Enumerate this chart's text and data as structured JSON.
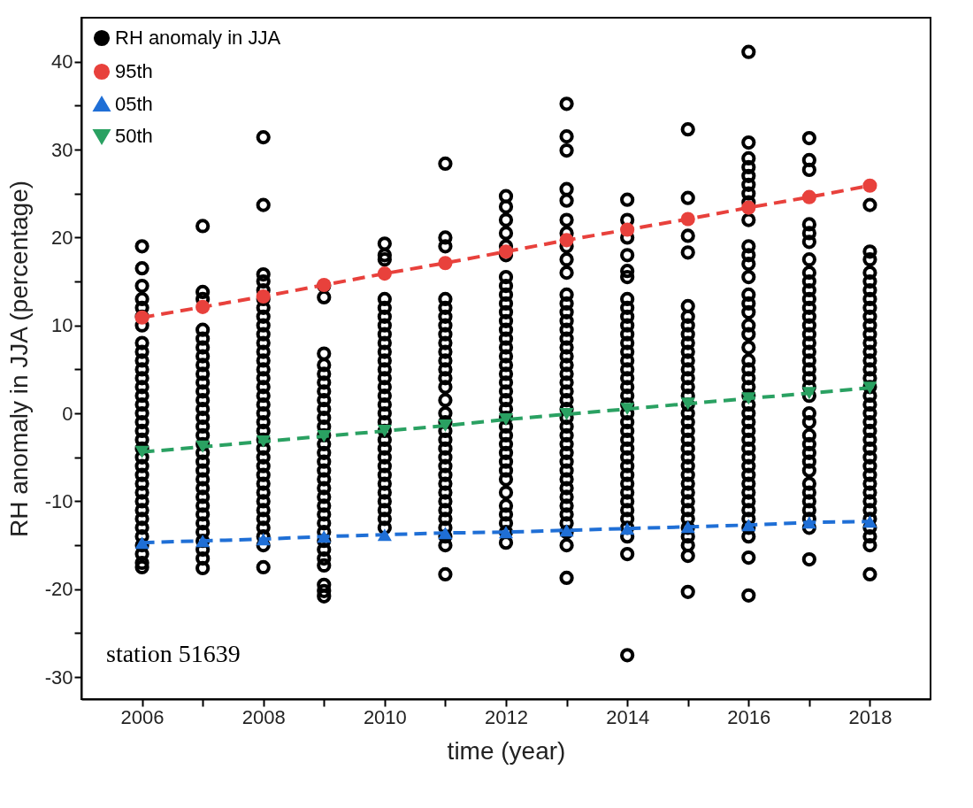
{
  "chart_data": {
    "type": "scatter",
    "xlabel": "time (year)",
    "ylabel": "RH anomaly in JJA (percentage)",
    "xlim": [
      2005,
      2019
    ],
    "ylim": [
      -32.5,
      45
    ],
    "xticks": [
      2006,
      {
        "value": 2007,
        "label": null
      },
      2008,
      {
        "value": 2009,
        "label": null
      },
      2010,
      {
        "value": 2011,
        "label": null
      },
      2012,
      {
        "value": 2013,
        "label": null
      },
      2014,
      {
        "value": 2015,
        "label": null
      },
      2016,
      {
        "value": 2017,
        "label": null
      },
      2018
    ],
    "yticks": [
      -30,
      {
        "value": -25,
        "label": null
      },
      -20,
      {
        "value": -15,
        "label": null
      },
      -10,
      {
        "value": -5,
        "label": null
      },
      0,
      {
        "value": 5,
        "label": null
      },
      10,
      {
        "value": 15,
        "label": null
      },
      20,
      {
        "value": 25,
        "label": null
      },
      30,
      {
        "value": 35,
        "label": null
      },
      40
    ],
    "grid": false,
    "legend": "top left",
    "annotations": [
      "station 51639"
    ],
    "series": [
      {
        "name": "RH anomaly in JJA",
        "marker": "circle",
        "color": "#000000",
        "x": [
          2006,
          2006,
          2006,
          2006,
          2006,
          2006,
          2006,
          2006,
          2006,
          2006,
          2006,
          2006,
          2006,
          2006,
          2006,
          2006,
          2006,
          2006,
          2006,
          2006,
          2006,
          2006,
          2006,
          2006,
          2006,
          2006,
          2006,
          2006,
          2006,
          2006,
          2006,
          2006,
          2006,
          2006,
          2007,
          2007,
          2007,
          2007,
          2007,
          2007,
          2007,
          2007,
          2007,
          2007,
          2007,
          2007,
          2007,
          2007,
          2007,
          2007,
          2007,
          2007,
          2007,
          2007,
          2007,
          2007,
          2007,
          2007,
          2007,
          2007,
          2007,
          2007,
          2007,
          2007,
          2007,
          2008,
          2008,
          2008,
          2008,
          2008,
          2008,
          2008,
          2008,
          2008,
          2008,
          2008,
          2008,
          2008,
          2008,
          2008,
          2008,
          2008,
          2008,
          2008,
          2008,
          2008,
          2008,
          2008,
          2008,
          2008,
          2008,
          2008,
          2008,
          2008,
          2008,
          2008,
          2008,
          2008,
          2008,
          2008,
          2009,
          2009,
          2009,
          2009,
          2009,
          2009,
          2009,
          2009,
          2009,
          2009,
          2009,
          2009,
          2009,
          2009,
          2009,
          2009,
          2009,
          2009,
          2009,
          2009,
          2009,
          2009,
          2009,
          2009,
          2009,
          2009,
          2009,
          2009,
          2009,
          2009,
          2010,
          2010,
          2010,
          2010,
          2010,
          2010,
          2010,
          2010,
          2010,
          2010,
          2010,
          2010,
          2010,
          2010,
          2010,
          2010,
          2010,
          2010,
          2010,
          2010,
          2010,
          2010,
          2010,
          2010,
          2010,
          2010,
          2010,
          2010,
          2010,
          2010,
          2011,
          2011,
          2011,
          2011,
          2011,
          2011,
          2011,
          2011,
          2011,
          2011,
          2011,
          2011,
          2011,
          2011,
          2011,
          2011,
          2011,
          2011,
          2011,
          2011,
          2011,
          2011,
          2011,
          2011,
          2011,
          2011,
          2011,
          2011,
          2011,
          2011,
          2011,
          2011,
          2012,
          2012,
          2012,
          2012,
          2012,
          2012,
          2012,
          2012,
          2012,
          2012,
          2012,
          2012,
          2012,
          2012,
          2012,
          2012,
          2012,
          2012,
          2012,
          2012,
          2012,
          2012,
          2012,
          2012,
          2012,
          2012,
          2012,
          2012,
          2012,
          2012,
          2012,
          2012,
          2012,
          2012,
          2012,
          2012,
          2013,
          2013,
          2013,
          2013,
          2013,
          2013,
          2013,
          2013,
          2013,
          2013,
          2013,
          2013,
          2013,
          2013,
          2013,
          2013,
          2013,
          2013,
          2013,
          2013,
          2013,
          2013,
          2013,
          2013,
          2013,
          2013,
          2013,
          2013,
          2013,
          2013,
          2013,
          2013,
          2013,
          2013,
          2013,
          2013,
          2013,
          2013,
          2013,
          2013,
          2014,
          2014,
          2014,
          2014,
          2014,
          2014,
          2014,
          2014,
          2014,
          2014,
          2014,
          2014,
          2014,
          2014,
          2014,
          2014,
          2014,
          2014,
          2014,
          2014,
          2014,
          2014,
          2014,
          2014,
          2014,
          2014,
          2014,
          2014,
          2014,
          2014,
          2014,
          2014,
          2014,
          2014,
          2014,
          2014,
          2015,
          2015,
          2015,
          2015,
          2015,
          2015,
          2015,
          2015,
          2015,
          2015,
          2015,
          2015,
          2015,
          2015,
          2015,
          2015,
          2015,
          2015,
          2015,
          2015,
          2015,
          2015,
          2015,
          2015,
          2015,
          2015,
          2015,
          2015,
          2015,
          2015,
          2015,
          2015,
          2015,
          2015,
          2016,
          2016,
          2016,
          2016,
          2016,
          2016,
          2016,
          2016,
          2016,
          2016,
          2016,
          2016,
          2016,
          2016,
          2016,
          2016,
          2016,
          2016,
          2016,
          2016,
          2016,
          2016,
          2016,
          2016,
          2016,
          2016,
          2016,
          2016,
          2016,
          2016,
          2016,
          2016,
          2016,
          2016,
          2016,
          2016,
          2016,
          2016,
          2016,
          2016,
          2016,
          2016,
          2017,
          2017,
          2017,
          2017,
          2017,
          2017,
          2017,
          2017,
          2017,
          2017,
          2017,
          2017,
          2017,
          2017,
          2017,
          2017,
          2017,
          2017,
          2017,
          2017,
          2017,
          2017,
          2017,
          2017,
          2017,
          2017,
          2017,
          2017,
          2017,
          2017,
          2017,
          2017,
          2017,
          2017,
          2017,
          2017,
          2018,
          2018,
          2018,
          2018,
          2018,
          2018,
          2018,
          2018,
          2018,
          2018,
          2018,
          2018,
          2018,
          2018,
          2018,
          2018,
          2018,
          2018,
          2018,
          2018,
          2018,
          2018,
          2018,
          2018,
          2018,
          2018,
          2018,
          2018,
          2018,
          2018,
          2018,
          2018,
          2018,
          2018,
          2018,
          2018
        ],
        "values": [
          19,
          16.5,
          14.5,
          13,
          12,
          11,
          10,
          8,
          7,
          6,
          5,
          4,
          3,
          2,
          1,
          0,
          -1,
          -2,
          -3,
          -4,
          -5,
          -6,
          -7,
          -8,
          -9,
          -10,
          -11,
          -12,
          -13,
          -14,
          -15,
          -16,
          -17,
          -17.5,
          21.3,
          13.8,
          13,
          9.5,
          8.5,
          7.5,
          6.5,
          5.5,
          4.5,
          3.5,
          2.5,
          1.5,
          0.5,
          -0.5,
          -1.5,
          -2.5,
          -3.5,
          -4.5,
          -5.5,
          -6.5,
          -7.5,
          -8.5,
          -9.5,
          -10.5,
          -11.5,
          -12.5,
          -13.5,
          -14.5,
          -15.5,
          -16.5,
          -17.6,
          31.4,
          23.7,
          15.8,
          15,
          14,
          13,
          12,
          11,
          10,
          9,
          8,
          7,
          6,
          5,
          4,
          3,
          2,
          1,
          0,
          -1,
          -2,
          -3,
          -4,
          -5,
          -6,
          -7,
          -8,
          -9,
          -10,
          -11,
          -12,
          -13,
          -14,
          -15,
          -17.5,
          14.5,
          13.2,
          6.8,
          5.5,
          4.5,
          3.5,
          2.5,
          1.5,
          0.5,
          -0.5,
          -1.5,
          -2.5,
          -3.5,
          -4.5,
          -5.5,
          -6.5,
          -7.5,
          -8.5,
          -9.5,
          -10.5,
          -11.5,
          -12.5,
          -13.5,
          -14.5,
          -15.5,
          -16.5,
          -17.3,
          -19.5,
          -20.2,
          -20.8,
          19.3,
          18,
          17.5,
          13,
          12,
          11,
          10,
          9,
          8,
          7,
          6,
          5,
          4,
          3,
          2,
          1,
          0,
          -1,
          -2,
          -3,
          -4,
          -5,
          -6,
          -7,
          -8,
          -9,
          -10,
          -11,
          -12,
          -13,
          28.4,
          20,
          19,
          13,
          12,
          11,
          10,
          9,
          8,
          7,
          6,
          5,
          4,
          3,
          1.5,
          0,
          -1,
          -2,
          -3,
          -4,
          -5,
          -6,
          -7,
          -8,
          -9,
          -10,
          -11,
          -12,
          -13,
          -14,
          -15,
          -18.3,
          24.7,
          23.5,
          22,
          20.5,
          19,
          18,
          15.5,
          14.5,
          13.5,
          12.5,
          11.5,
          10.5,
          9.5,
          8.5,
          7.5,
          6.5,
          5.5,
          4.5,
          3.5,
          2.5,
          1.5,
          0.5,
          -0.5,
          -1.5,
          -2.5,
          -3.5,
          -4.5,
          -5.5,
          -6.5,
          -7.5,
          -9,
          -10.5,
          -11.5,
          -12.5,
          -13.5,
          -14.7,
          35.2,
          31.5,
          29.9,
          25.5,
          24.2,
          22,
          20.5,
          19,
          17.5,
          16,
          13.5,
          12.5,
          11.5,
          10.5,
          9.5,
          8.5,
          7.5,
          6.5,
          5.5,
          4.5,
          3.5,
          2.5,
          1.5,
          0.5,
          -0.5,
          -1.5,
          -2.5,
          -3.5,
          -4.5,
          -5.5,
          -6.5,
          -7.5,
          -8.5,
          -9.5,
          -10.5,
          -11.5,
          -12.5,
          -13.5,
          -15,
          -18.7,
          24.3,
          22,
          20,
          18,
          16.2,
          15.5,
          13,
          12,
          11,
          10,
          9,
          8,
          7,
          6,
          5,
          4,
          3,
          2,
          1,
          0,
          -1,
          -2,
          -3,
          -4,
          -5,
          -6,
          -7,
          -8,
          -9,
          -10,
          -11,
          -12,
          -13,
          -14,
          -16,
          -27.5,
          32.3,
          24.5,
          20.2,
          18.3,
          12.2,
          11,
          10,
          9,
          8,
          7,
          6,
          5,
          4,
          3,
          2,
          1,
          0,
          -1,
          -2,
          -3,
          -4,
          -5,
          -6,
          -7,
          -8,
          -9,
          -10,
          -11,
          -12,
          -13,
          -14,
          -15,
          -16.2,
          -20.3,
          41.1,
          30.8,
          29,
          28,
          27,
          26,
          25,
          24,
          22,
          19,
          18,
          17,
          15.5,
          13.5,
          12.5,
          11.5,
          10,
          9,
          7.5,
          6,
          5,
          4,
          3,
          2,
          1,
          0,
          -1,
          -2,
          -3,
          -4,
          -5,
          -6,
          -7,
          -8,
          -9,
          -10,
          -11,
          -12,
          -13,
          -14,
          -16.4,
          -20.7,
          31.3,
          28.8,
          27.7,
          21.5,
          20.5,
          19.5,
          17.5,
          16,
          15,
          14,
          13,
          12,
          11,
          10,
          9,
          8,
          7,
          6,
          5,
          4,
          3,
          2,
          0,
          -1,
          -2.5,
          -3.5,
          -4.5,
          -5.5,
          -6.5,
          -8,
          -9,
          -10,
          -11,
          -12,
          -13,
          -16.6,
          23.7,
          18.4,
          17.5,
          16,
          15,
          14,
          13,
          12,
          11,
          10,
          9,
          8,
          7,
          6,
          5,
          4,
          3,
          2,
          1,
          0,
          -1,
          -2,
          -3,
          -4,
          -5,
          -6,
          -7,
          -8,
          -9,
          -10,
          -11,
          -12,
          -13,
          -14,
          -15,
          -18.3
        ]
      },
      {
        "name": "95th",
        "type": "line",
        "marker": "circle",
        "line_style": "dashed",
        "color": "#e8413c",
        "x": [
          2006,
          2007,
          2008,
          2009,
          2010,
          2011,
          2012,
          2013,
          2014,
          2015,
          2016,
          2017,
          2018
        ],
        "values": [
          10.9,
          12.1,
          13.3,
          14.6,
          15.9,
          17.1,
          18.4,
          19.7,
          20.9,
          22.1,
          23.4,
          24.6,
          25.9
        ]
      },
      {
        "name": "05th",
        "type": "line",
        "marker": "triangle",
        "line_style": "dashed",
        "color": "#1f6fd6",
        "x": [
          2006,
          2007,
          2008,
          2009,
          2010,
          2011,
          2012,
          2013,
          2014,
          2015,
          2016,
          2017,
          2018
        ],
        "values": [
          -14.7,
          -14.5,
          -14.3,
          -14.0,
          -13.8,
          -13.6,
          -13.5,
          -13.3,
          -13.1,
          -12.9,
          -12.7,
          -12.4,
          -12.3
        ]
      },
      {
        "name": "50th",
        "type": "line",
        "marker": "triangle-down",
        "line_style": "dashed",
        "color": "#2aa162",
        "x": [
          2006,
          2007,
          2008,
          2009,
          2010,
          2011,
          2012,
          2013,
          2014,
          2015,
          2016,
          2017,
          2018
        ],
        "values": [
          -4.4,
          -3.8,
          -3.2,
          -2.6,
          -2.0,
          -1.4,
          -0.7,
          -0.1,
          0.5,
          1.1,
          1.7,
          2.3,
          2.9
        ]
      }
    ]
  }
}
